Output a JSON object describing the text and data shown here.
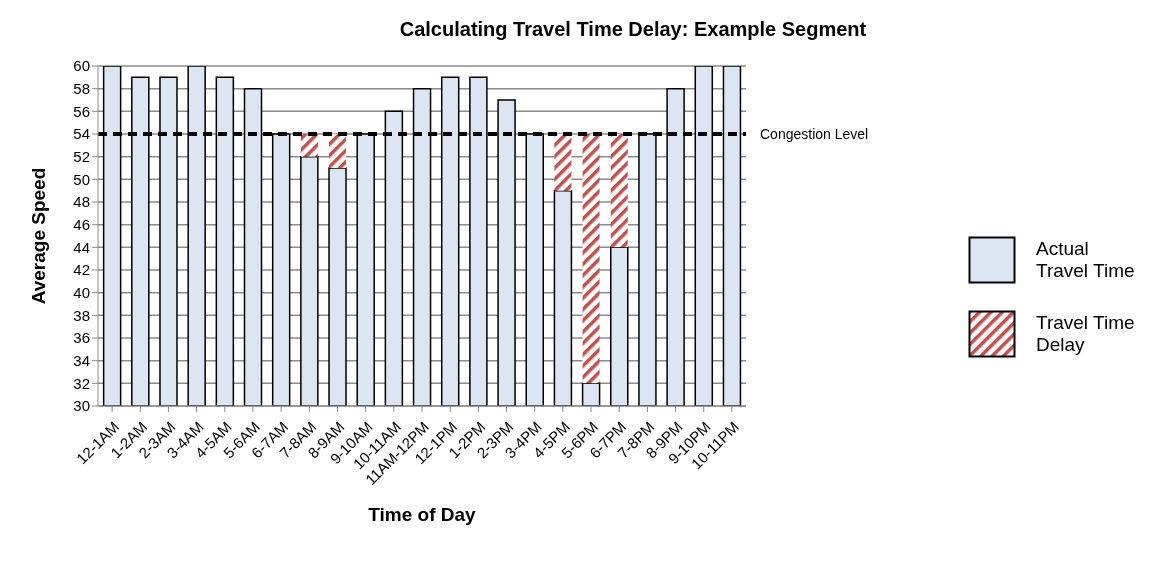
{
  "chart_data": {
    "type": "bar",
    "title": "Calculating Travel Time Delay: Example Segment",
    "xlabel": "Time of Day",
    "ylabel": "Average Speed",
    "categories": [
      "12-1AM",
      "1-2AM",
      "2-3AM",
      "3-4AM",
      "4-5AM",
      "5-6AM",
      "6-7AM",
      "7-8AM",
      "8-9AM",
      "9-10AM",
      "10-11AM",
      "11AM-12PM",
      "12-1PM",
      "1-2PM",
      "2-3PM",
      "3-4PM",
      "4-5PM",
      "5-6PM",
      "6-7PM",
      "7-8PM",
      "8-9PM",
      "9-10PM",
      "10-11PM"
    ],
    "series": [
      {
        "name": "Actual Travel Time",
        "color": "#dce6f2",
        "values": [
          60,
          59,
          59,
          60,
          59,
          58,
          54,
          52,
          51,
          54,
          56,
          58,
          59,
          59,
          57,
          54,
          49,
          32,
          44,
          54,
          58,
          60,
          60
        ]
      },
      {
        "name": "Travel Time Delay",
        "color": "#c0504d",
        "values": [
          null,
          null,
          null,
          null,
          null,
          null,
          null,
          2,
          3,
          null,
          null,
          null,
          null,
          null,
          null,
          null,
          5,
          22,
          10,
          null,
          null,
          null,
          null
        ],
        "base": [
          null,
          null,
          null,
          null,
          null,
          null,
          null,
          52,
          51,
          null,
          null,
          null,
          null,
          null,
          null,
          null,
          49,
          32,
          44,
          null,
          null,
          null,
          null
        ]
      }
    ],
    "ylim": [
      30,
      60
    ],
    "yticks": [
      30,
      32,
      34,
      36,
      38,
      40,
      42,
      44,
      46,
      48,
      50,
      52,
      54,
      56,
      58,
      60
    ],
    "grid": "y",
    "legend": "right",
    "ref_lines": [
      {
        "axis": "y",
        "value": 54,
        "label": "Congestion Level",
        "color": "#000000",
        "line_style": "dashed"
      }
    ]
  }
}
